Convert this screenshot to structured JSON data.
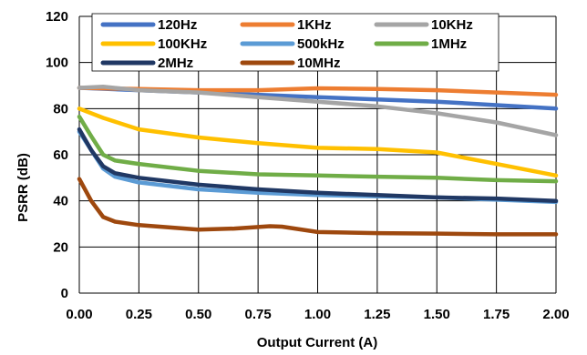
{
  "chart_data": {
    "type": "line",
    "xlabel": "Output Current (A)",
    "ylabel": "PSRR (dB)",
    "xlim": [
      0,
      2
    ],
    "ylim": [
      0,
      120
    ],
    "x_ticks": [
      "0.00",
      "0.25",
      "0.50",
      "0.75",
      "1.00",
      "1.25",
      "1.50",
      "1.75",
      "2.00"
    ],
    "y_ticks": [
      "0",
      "20",
      "40",
      "60",
      "80",
      "100",
      "120"
    ],
    "grid": true,
    "legend_position": "top",
    "series": [
      {
        "name": "120Hz",
        "color": "#4472C4",
        "points": [
          [
            0,
            89
          ],
          [
            0.25,
            88
          ],
          [
            0.5,
            87
          ],
          [
            0.75,
            86
          ],
          [
            1.0,
            85
          ],
          [
            1.25,
            84
          ],
          [
            1.5,
            83
          ],
          [
            1.75,
            81.5
          ],
          [
            2.0,
            80
          ]
        ]
      },
      {
        "name": "1KHz",
        "color": "#ED7D31",
        "points": [
          [
            0,
            89
          ],
          [
            0.25,
            88.5
          ],
          [
            0.5,
            88
          ],
          [
            0.75,
            88
          ],
          [
            0.85,
            88.3
          ],
          [
            1.0,
            88.8
          ],
          [
            1.25,
            88.5
          ],
          [
            1.5,
            88
          ],
          [
            1.75,
            87
          ],
          [
            2.0,
            86
          ]
        ]
      },
      {
        "name": "10KHz",
        "color": "#A5A5A5",
        "points": [
          [
            0,
            89
          ],
          [
            0.1,
            89.5
          ],
          [
            0.25,
            88
          ],
          [
            0.5,
            87
          ],
          [
            0.75,
            85
          ],
          [
            1.0,
            83
          ],
          [
            1.25,
            81
          ],
          [
            1.5,
            78
          ],
          [
            1.75,
            74
          ],
          [
            2.0,
            68.5
          ]
        ]
      },
      {
        "name": "100KHz",
        "color": "#FFC000",
        "points": [
          [
            0,
            80
          ],
          [
            0.1,
            76
          ],
          [
            0.25,
            71
          ],
          [
            0.5,
            67.5
          ],
          [
            0.75,
            65
          ],
          [
            1.0,
            63
          ],
          [
            1.25,
            62.5
          ],
          [
            1.5,
            61
          ],
          [
            1.75,
            56
          ],
          [
            2.0,
            51
          ]
        ]
      },
      {
        "name": "500kHz",
        "color": "#5B9BD5",
        "points": [
          [
            0,
            70
          ],
          [
            0.05,
            62
          ],
          [
            0.1,
            54
          ],
          [
            0.15,
            50.5
          ],
          [
            0.25,
            48
          ],
          [
            0.5,
            45
          ],
          [
            0.75,
            43.5
          ],
          [
            1.0,
            42.5
          ],
          [
            1.25,
            42
          ],
          [
            1.5,
            41.5
          ],
          [
            1.75,
            40.5
          ],
          [
            2.0,
            39.5
          ]
        ]
      },
      {
        "name": "1MHz",
        "color": "#70AD47",
        "points": [
          [
            0,
            76.5
          ],
          [
            0.05,
            68
          ],
          [
            0.1,
            60
          ],
          [
            0.15,
            57.5
          ],
          [
            0.25,
            56
          ],
          [
            0.5,
            53
          ],
          [
            0.75,
            51.5
          ],
          [
            1.0,
            51
          ],
          [
            1.25,
            50.5
          ],
          [
            1.5,
            50
          ],
          [
            1.75,
            49
          ],
          [
            2.0,
            48.5
          ]
        ]
      },
      {
        "name": "2MHz",
        "color": "#203864",
        "points": [
          [
            0,
            71
          ],
          [
            0.05,
            62
          ],
          [
            0.1,
            55
          ],
          [
            0.15,
            52
          ],
          [
            0.25,
            50
          ],
          [
            0.5,
            47
          ],
          [
            0.75,
            45
          ],
          [
            1.0,
            43.5
          ],
          [
            1.25,
            42.5
          ],
          [
            1.5,
            41.5
          ],
          [
            1.75,
            41
          ],
          [
            2.0,
            40
          ]
        ]
      },
      {
        "name": "10MHz",
        "color": "#9E480E",
        "points": [
          [
            0,
            49.5
          ],
          [
            0.05,
            40
          ],
          [
            0.1,
            33
          ],
          [
            0.15,
            31
          ],
          [
            0.25,
            29.5
          ],
          [
            0.5,
            27.5
          ],
          [
            0.65,
            28
          ],
          [
            0.8,
            29
          ],
          [
            0.85,
            28.8
          ],
          [
            1.0,
            26.5
          ],
          [
            1.25,
            26
          ],
          [
            1.5,
            25.8
          ],
          [
            1.75,
            25.5
          ],
          [
            2.0,
            25.5
          ]
        ]
      }
    ]
  }
}
